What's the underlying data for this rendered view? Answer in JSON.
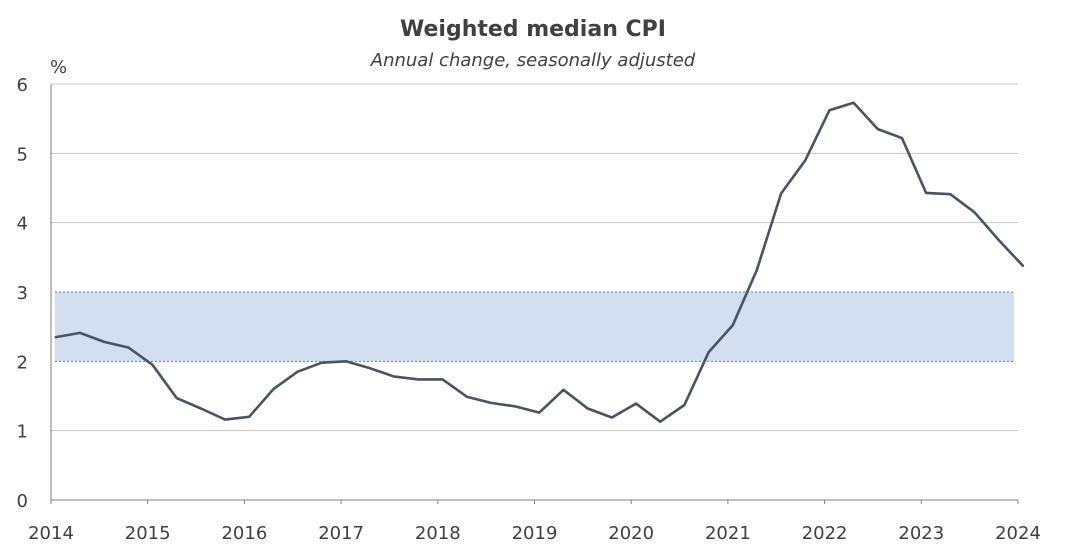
{
  "chart_data": {
    "type": "line",
    "title": "Weighted median CPI",
    "subtitle": "Annual change, seasonally adjusted",
    "ylabel": "%",
    "xlabel": "",
    "ylim": [
      0,
      6
    ],
    "xlim": [
      2014,
      2024
    ],
    "y_ticks": [
      "0",
      "1",
      "2",
      "3",
      "4",
      "5",
      "6"
    ],
    "x_ticks": [
      "2014",
      "2015",
      "2016",
      "2017",
      "2018",
      "2019",
      "2020",
      "2021",
      "2022",
      "2023",
      "2024"
    ],
    "grid": true,
    "target_band": [
      2,
      3
    ],
    "colors": {
      "line": "#4a5363",
      "band": "#d3dff0",
      "band_edge": "#5a7fb5",
      "grid": "#c8c8c8",
      "axis": "#7f7f7f"
    },
    "series": [
      {
        "x": [
          2014.0,
          2014.25,
          2014.5,
          2014.75,
          2015.0,
          2015.25,
          2015.5,
          2015.75,
          2016.0,
          2016.25,
          2016.5,
          2016.75,
          2017.0,
          2017.25,
          2017.5,
          2017.75,
          2018.0,
          2018.25,
          2018.5,
          2018.75,
          2019.0,
          2019.25,
          2019.5,
          2019.75,
          2020.0,
          2020.25,
          2020.5,
          2020.75,
          2021.0,
          2021.25,
          2021.5,
          2021.75,
          2022.0,
          2022.25,
          2022.5,
          2022.75,
          2023.0,
          2023.25,
          2023.5,
          2023.75,
          2024.0
        ],
        "values": [
          2.35,
          2.41,
          2.28,
          2.2,
          1.95,
          1.47,
          1.32,
          1.16,
          1.2,
          1.6,
          1.85,
          1.98,
          2.0,
          1.9,
          1.78,
          1.74,
          1.74,
          1.49,
          1.4,
          1.35,
          1.26,
          1.59,
          1.32,
          1.19,
          1.39,
          1.13,
          1.37,
          2.13,
          2.52,
          3.32,
          4.42,
          4.9,
          5.62,
          5.73,
          5.35,
          5.22,
          4.43,
          4.41,
          4.15,
          3.75,
          3.38
        ]
      }
    ]
  }
}
